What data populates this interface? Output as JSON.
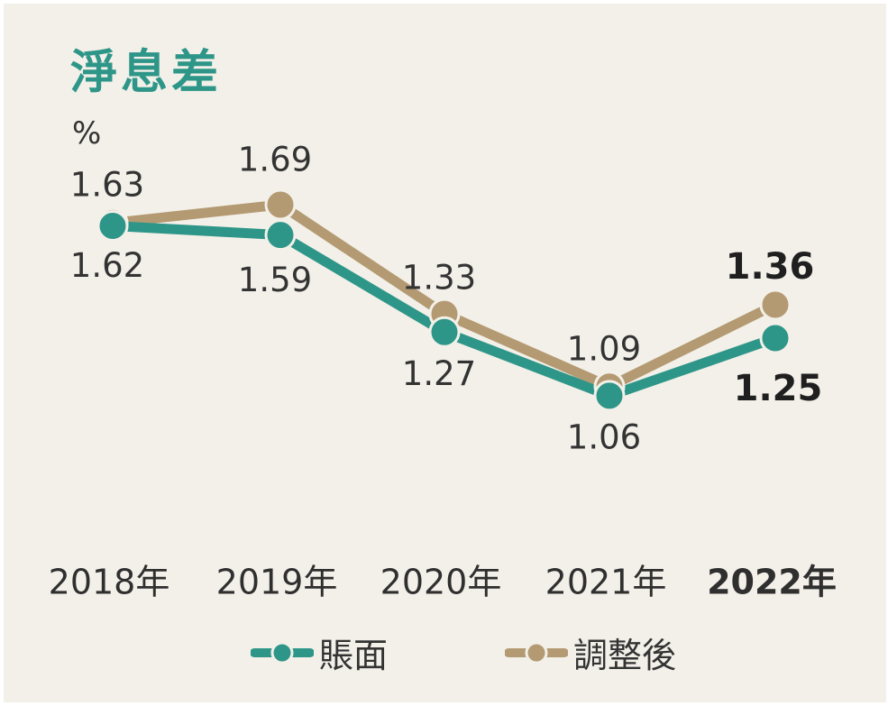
{
  "title": "淨息差",
  "unit": "%",
  "colors": {
    "book": "#2e9688",
    "adjusted": "#b49a72",
    "background": "#f3f0e9"
  },
  "legend": [
    {
      "name": "賬面",
      "color": "#2e9688"
    },
    {
      "name": "調整後",
      "color": "#b49a72"
    }
  ],
  "chart_data": {
    "type": "line",
    "title": "淨息差",
    "ylabel": "%",
    "categories": [
      "2018年",
      "2019年",
      "2020年",
      "2021年",
      "2022年"
    ],
    "highlight_category": "2022年",
    "ylim": [
      0.7,
      1.8
    ],
    "series": [
      {
        "name": "賬面",
        "values": [
          1.62,
          1.59,
          1.27,
          1.06,
          1.25
        ]
      },
      {
        "name": "調整後",
        "values": [
          1.63,
          1.69,
          1.33,
          1.09,
          1.36
        ]
      }
    ]
  }
}
